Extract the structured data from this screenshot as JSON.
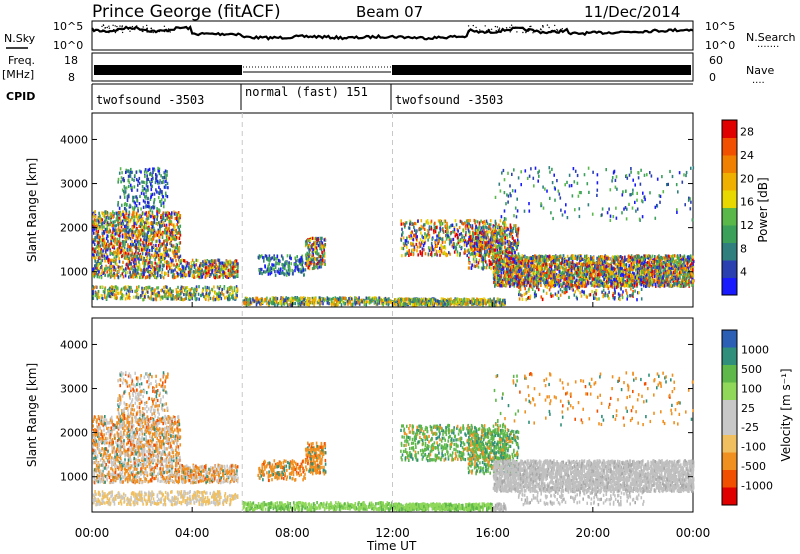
{
  "header": {
    "station": "Prince George (fitACF)",
    "beam": "Beam 07",
    "date": "11/Dec/2014"
  },
  "left_labels": {
    "nsky": "N.Sky",
    "freq": "Freq.",
    "freq_unit": "[MHz]",
    "cpid": "CPID"
  },
  "right_labels": {
    "nsearch": "N.Search",
    "nave": "Nave",
    "dotted_marker": "·······",
    "dotted_marker_short": "····"
  },
  "noise_axis": {
    "left_ticks": [
      "10^5",
      "10^0"
    ],
    "right_ticks": [
      "10^5",
      "10^0"
    ]
  },
  "freq_axis": {
    "left_ticks": [
      "18",
      "8"
    ],
    "right_ticks": [
      "60",
      "0"
    ]
  },
  "cpid_segments": [
    {
      "label": "twofsound -3503",
      "start_h": 0,
      "end_h": 6
    },
    {
      "label": "normal (fast) 151",
      "start_h": 6,
      "end_h": 12
    },
    {
      "label": "twofsound -3503",
      "start_h": 12,
      "end_h": 24
    }
  ],
  "colors": {
    "power_scale": [
      "#1a1aff",
      "#2a3fb0",
      "#2f7f7f",
      "#3aa05a",
      "#5ab84a",
      "#e8d800",
      "#f0b000",
      "#f08000",
      "#f05000",
      "#e00000"
    ],
    "velocity_scale": [
      "#2a5fb5",
      "#2f8f7a",
      "#5fb84a",
      "#8fd85a",
      "#c8c8c8",
      "#c8c8c8",
      "#f0c060",
      "#f09020",
      "#f05000",
      "#e00000"
    ],
    "dashed_line": "#c8c8c8"
  },
  "chart_data": [
    {
      "type": "heatmap",
      "name": "power",
      "ylabel": "Slant Range [km]",
      "x_range_hours": [
        0,
        24
      ],
      "ylim": [
        200,
        4600
      ],
      "yticks": [
        1000,
        2000,
        3000,
        4000
      ],
      "colorbar_label": "Power [dB]",
      "colorbar_ticks": [
        4,
        8,
        12,
        16,
        20,
        24,
        28
      ],
      "colorbar_range": [
        0,
        30
      ]
    },
    {
      "type": "heatmap",
      "name": "velocity",
      "ylabel": "Slant Range [km]",
      "x_range_hours": [
        0,
        24
      ],
      "ylim": [
        200,
        4600
      ],
      "yticks": [
        1000,
        2000,
        3000,
        4000
      ],
      "colorbar_label": "Velocity [m s⁻¹]",
      "colorbar_ticks": [
        "1000",
        "500",
        "100",
        "25",
        "-25",
        "-100",
        "-500",
        "-1000"
      ]
    }
  ],
  "x_axis": {
    "tick_labels": [
      "00:00",
      "04:00",
      "08:00",
      "12:00",
      "16:00",
      "20:00",
      "00:00"
    ],
    "label": "Time UT"
  }
}
